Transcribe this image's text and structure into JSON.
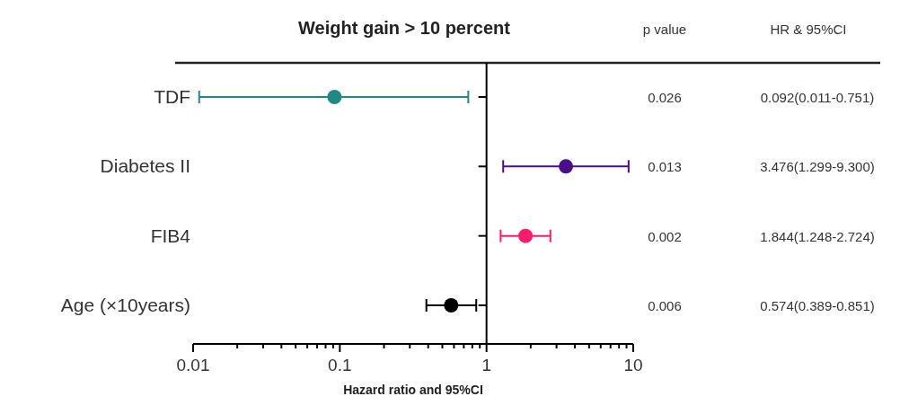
{
  "chart_data": {
    "type": "scatter",
    "orientation": "horizontal",
    "title": "Weight gain > 10 percent",
    "xlabel": "Hazard ratio and 95%CI",
    "categories": [
      "TDF",
      "Diabetes II",
      "FIB4",
      "Age (×10years)"
    ],
    "values": [
      0.092,
      3.476,
      1.844,
      0.574
    ],
    "errors": [
      [
        0.011,
        0.751
      ],
      [
        1.299,
        9.3
      ],
      [
        1.248,
        2.724
      ],
      [
        0.389,
        0.851
      ]
    ],
    "colors": [
      "#1f8a84",
      "#4b0d8c",
      "#ff1a6e",
      "#000000"
    ],
    "value_labels": [
      "0.092(0.011-0.751)",
      "3.476(1.299-9.300)",
      "1.844(1.248-2.724)",
      "0.574(0.389-0.851)"
    ],
    "annotations": [
      "p value",
      "HR & 95%CI",
      "0.026",
      "0.013",
      "0.002",
      "0.006"
    ],
    "log": "x",
    "marker": "circle",
    "xlim": [
      0.01,
      10
    ],
    "xticks": [
      0.01,
      {
        "value": 0.02,
        "label": null
      },
      {
        "value": 0.03,
        "label": null
      },
      {
        "value": 0.04,
        "label": null
      },
      {
        "value": 0.05,
        "label": null
      },
      {
        "value": 0.06,
        "label": null
      },
      {
        "value": 0.07,
        "label": null
      },
      {
        "value": 0.08,
        "label": null
      },
      {
        "value": 0.09,
        "label": null
      },
      0.1,
      {
        "value": 0.2,
        "label": null
      },
      {
        "value": 0.3,
        "label": null
      },
      {
        "value": 0.4,
        "label": null
      },
      {
        "value": 0.5,
        "label": null
      },
      {
        "value": 0.6,
        "label": null
      },
      {
        "value": 0.7,
        "label": null
      },
      {
        "value": 0.8,
        "label": null
      },
      {
        "value": 0.9,
        "label": null
      },
      1,
      {
        "value": 2,
        "label": null
      },
      {
        "value": 3,
        "label": null
      },
      {
        "value": 4,
        "label": null
      },
      {
        "value": 5,
        "label": null
      },
      {
        "value": 6,
        "label": null
      },
      {
        "value": 7,
        "label": null
      },
      {
        "value": 8,
        "label": null
      },
      {
        "value": 9,
        "label": null
      },
      10
    ],
    "ref_lines": [
      {
        "axis": "x",
        "value": 1,
        "color": "#000000"
      }
    ]
  }
}
